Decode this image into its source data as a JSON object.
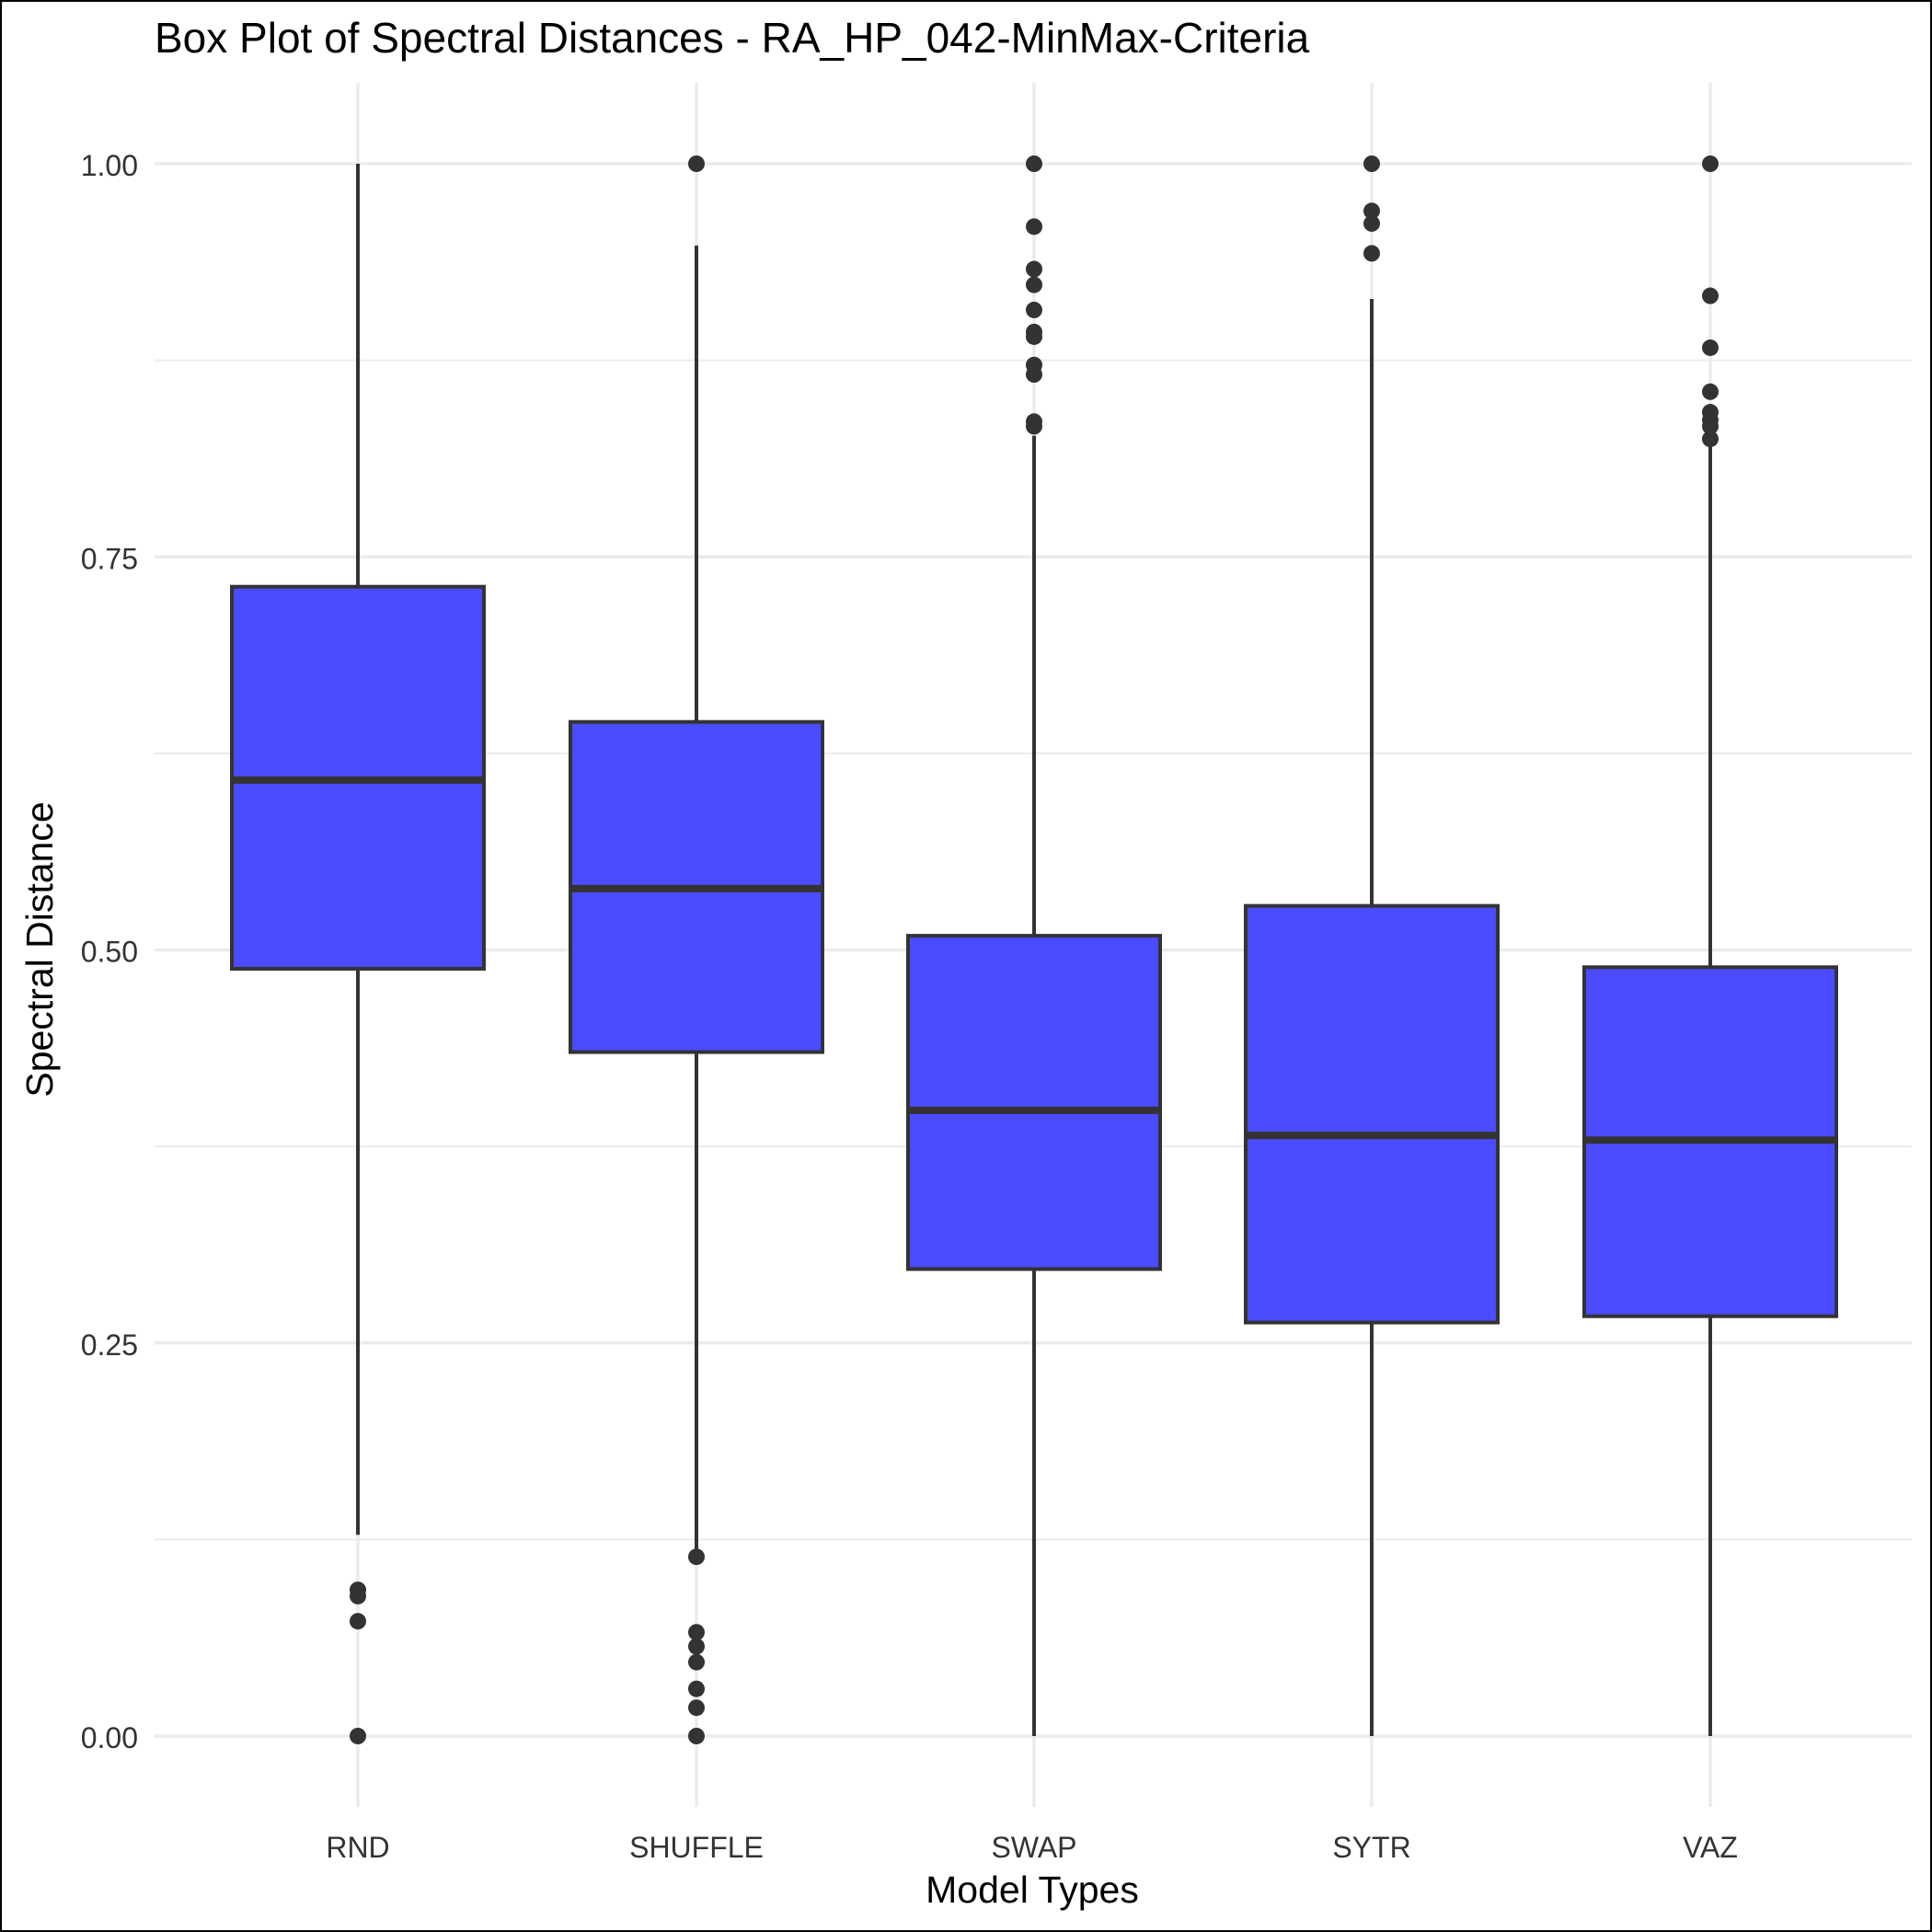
{
  "chart_data": {
    "type": "box",
    "title": "Box Plot of Spectral Distances -  RA_HP_042-MinMax-Criteria",
    "xlabel": "Model Types",
    "ylabel": "Spectral Distance",
    "ylim": [
      -0.04,
      1.05
    ],
    "y_ticks": [
      0.0,
      0.25,
      0.5,
      0.75,
      1.0
    ],
    "y_tick_labels": [
      "0.00",
      "0.25",
      "0.50",
      "0.75",
      "1.00"
    ],
    "grid": true,
    "legend": "none",
    "box_fill": "#4B4BFF",
    "outline_color": "#333333",
    "categories": [
      "RND",
      "SHUFFLE",
      "SWAP",
      "SYTR",
      "VAZ"
    ],
    "boxes": [
      {
        "category": "RND",
        "whisker_low": 0.128,
        "q1": 0.488,
        "median": 0.608,
        "q3": 0.731,
        "whisker_high": 1.0,
        "outliers": [
          0.0,
          0.073,
          0.089,
          0.093
        ]
      },
      {
        "category": "SHUFFLE",
        "whisker_low": 0.116,
        "q1": 0.435,
        "median": 0.539,
        "q3": 0.645,
        "whisker_high": 0.948,
        "outliers": [
          0.0,
          0.018,
          0.03,
          0.047,
          0.057,
          0.066,
          0.114,
          1.0
        ]
      },
      {
        "category": "SWAP",
        "whisker_low": 0.0,
        "q1": 0.297,
        "median": 0.398,
        "q3": 0.509,
        "whisker_high": 0.827,
        "outliers": [
          0.833,
          0.836,
          0.866,
          0.872,
          0.89,
          0.893,
          0.907,
          0.923,
          0.933,
          0.96,
          1.0
        ]
      },
      {
        "category": "SYTR",
        "whisker_low": 0.0,
        "q1": 0.263,
        "median": 0.382,
        "q3": 0.528,
        "whisker_high": 0.914,
        "outliers": [
          0.943,
          0.962,
          0.97,
          1.0
        ]
      },
      {
        "category": "VAZ",
        "whisker_low": 0.0,
        "q1": 0.267,
        "median": 0.379,
        "q3": 0.489,
        "whisker_high": 0.82,
        "outliers": [
          0.825,
          0.833,
          0.837,
          0.842,
          0.855,
          0.883,
          0.916,
          1.0
        ]
      }
    ]
  }
}
